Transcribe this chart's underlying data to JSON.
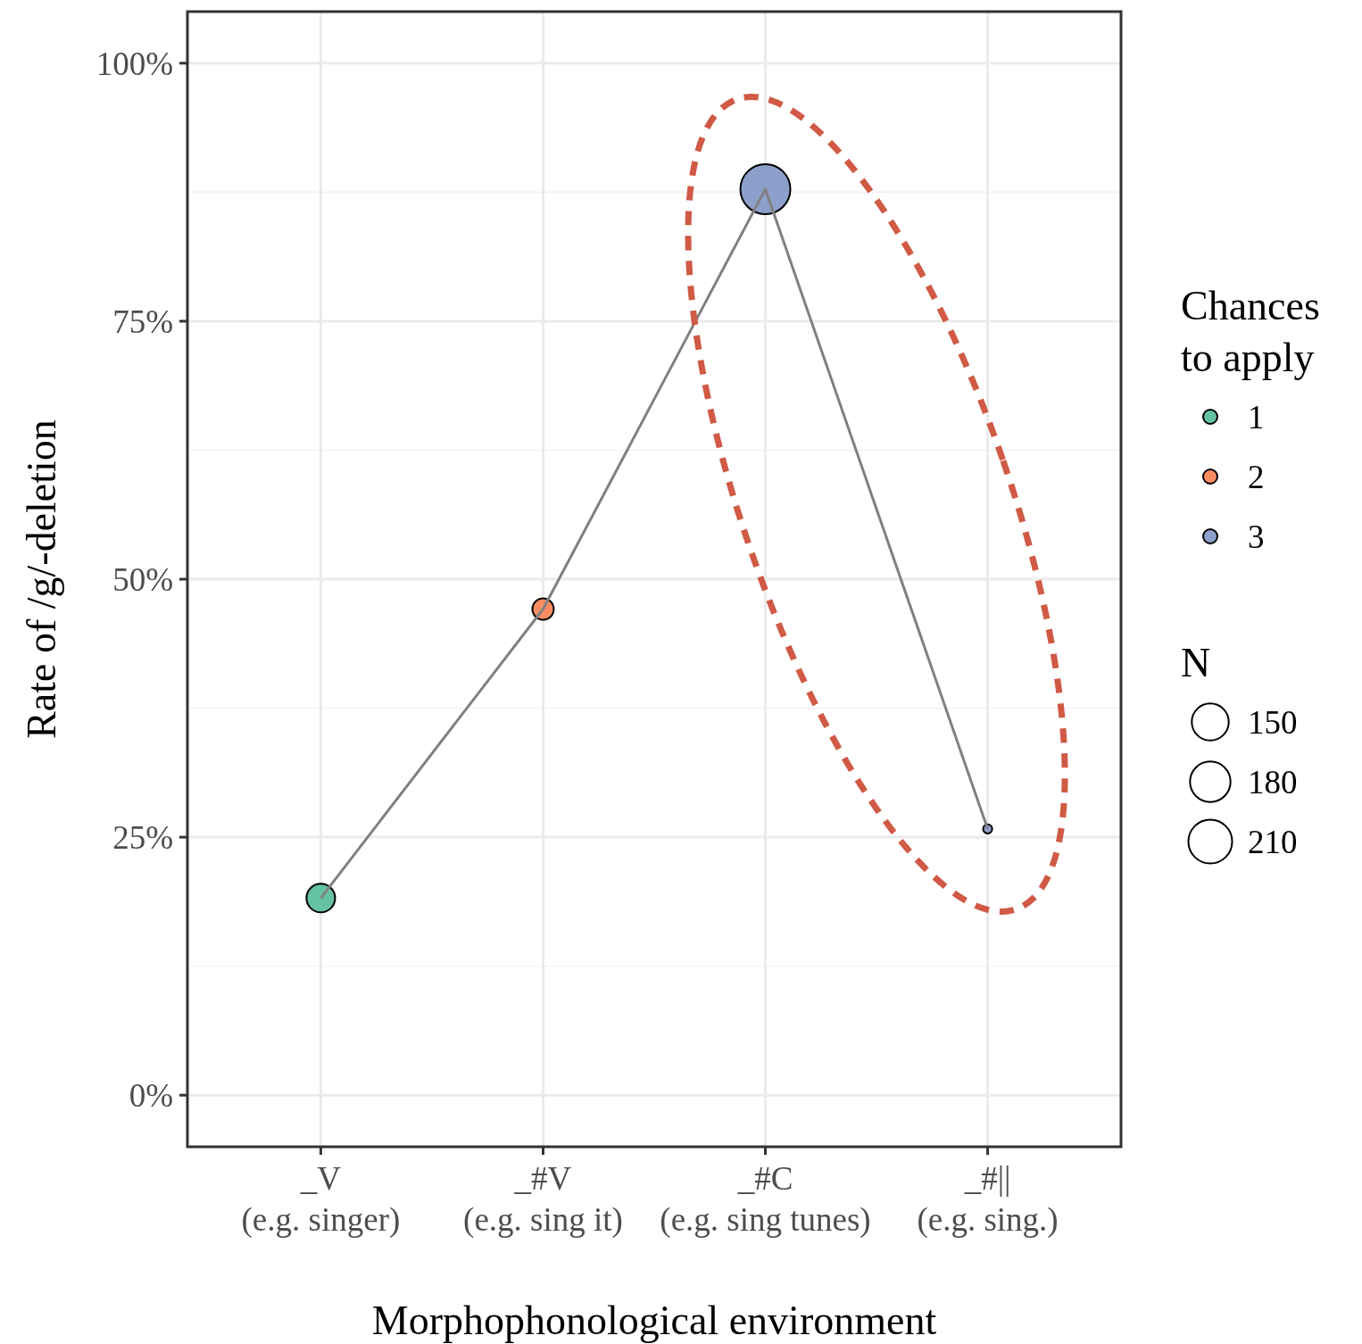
{
  "chart_data": {
    "type": "line",
    "xlabel": "Morphophonological environment",
    "ylabel": "Rate of /g/-deletion",
    "legend_title": "Chances to apply",
    "categories": [
      "_V\n(e.g. singer)",
      "_#V\n(e.g. sing it)",
      "_#C\n(e.g. sing tunes)",
      "_#||\n(e.g. sing.)"
    ],
    "series": [
      {
        "color": "#808080",
        "values": [
          19.1,
          47.1,
          87.8,
          25.8
        ],
        "marker": "none"
      },
      {
        "type": "bubble",
        "name": "1",
        "color": "#66c2a5",
        "values": [
          19.1,
          null,
          null,
          null
        ],
        "sizes": [
          90,
          null,
          null,
          null
        ]
      },
      {
        "type": "bubble",
        "name": "2",
        "color": "#fc8d62",
        "values": [
          null,
          47.1,
          null,
          null
        ],
        "sizes": [
          null,
          50,
          null,
          null
        ]
      },
      {
        "type": "bubble",
        "name": "3",
        "color": "#8da0cb",
        "values": [
          null,
          null,
          87.8,
          25.8
        ],
        "sizes": [
          null,
          null,
          274,
          9
        ]
      }
    ],
    "size_legend": [
      150,
      180,
      210
    ],
    "annotations": [
      "N"
    ],
    "ylim": [
      -5,
      105
    ],
    "yticks": [
      {
        "value": 0,
        "label": "0%"
      },
      {
        "value": 25,
        "label": "25%"
      },
      {
        "value": 50,
        "label": "50%"
      },
      {
        "value": 75,
        "label": "75%"
      },
      {
        "value": 100,
        "label": "100%"
      }
    ],
    "grid": true,
    "legend": "right"
  }
}
